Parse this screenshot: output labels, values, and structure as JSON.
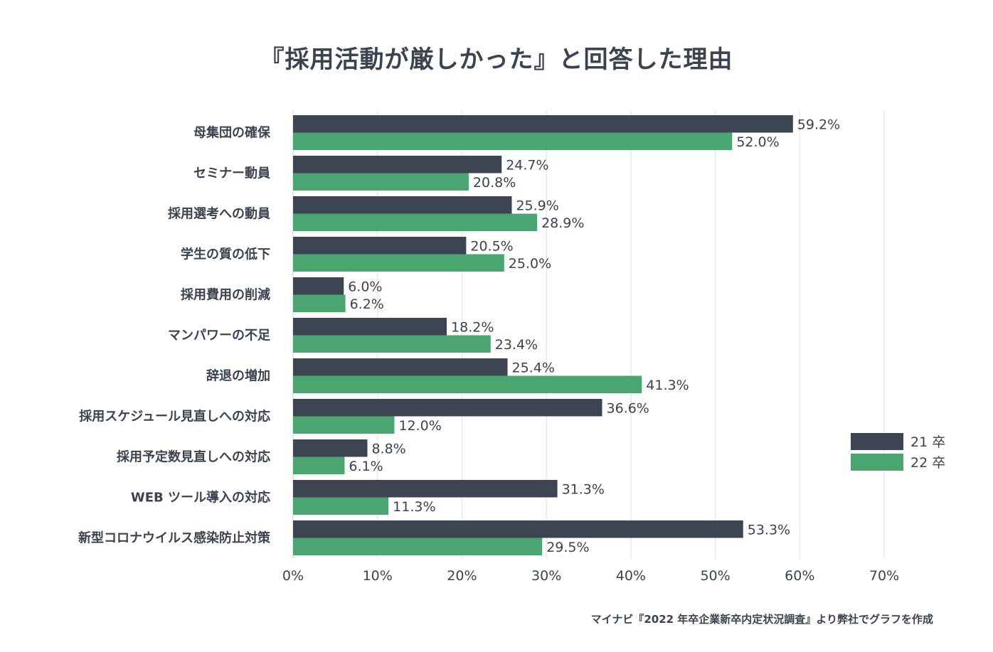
{
  "chart_data": {
    "type": "bar",
    "orientation": "horizontal",
    "title": "『採用活動が厳しかった』と回答した理由",
    "categories": [
      "母集団の確保",
      "セミナー動員",
      "採用選考への動員",
      "学生の質の低下",
      "採用費用の削減",
      "マンパワーの不足",
      "辞退の増加",
      "採用スケジュール見直しへの対応",
      "採用予定数見直しへの対応",
      "WEB ツール導入の対応",
      "新型コロナウイルス感染防止対策"
    ],
    "series": [
      {
        "name": "21 卒",
        "color": "#3d4452",
        "values": [
          59.2,
          24.7,
          25.9,
          20.5,
          6.0,
          18.2,
          25.4,
          36.6,
          8.8,
          31.3,
          53.3
        ],
        "labels": [
          "59.2%",
          "24.7%",
          "25.9%",
          "20.5%",
          "6.0%",
          "18.2%",
          "25.4%",
          "36.6%",
          "8.8%",
          "31.3%",
          "53.3%"
        ]
      },
      {
        "name": "22 卒",
        "color": "#4aa571",
        "values": [
          52.0,
          20.8,
          28.9,
          25.0,
          6.2,
          23.4,
          41.3,
          12.0,
          6.1,
          11.3,
          29.5
        ],
        "labels": [
          "52.0%",
          "20.8%",
          "28.9%",
          "25.0%",
          "6.2%",
          "23.4%",
          "41.3%",
          "12.0%",
          "6.1%",
          "11.3%",
          "29.5%"
        ]
      }
    ],
    "xlim": [
      0,
      70
    ],
    "xticks": [
      0,
      10,
      20,
      30,
      40,
      50,
      60,
      70
    ],
    "xtick_labels": [
      "0%",
      "10%",
      "20%",
      "30%",
      "40%",
      "50%",
      "60%",
      "70%"
    ],
    "grid": true,
    "legend": "right"
  },
  "source_note": "マイナビ『2022 年卒企業新卒内定状況調査』より弊社でグラフを作成"
}
